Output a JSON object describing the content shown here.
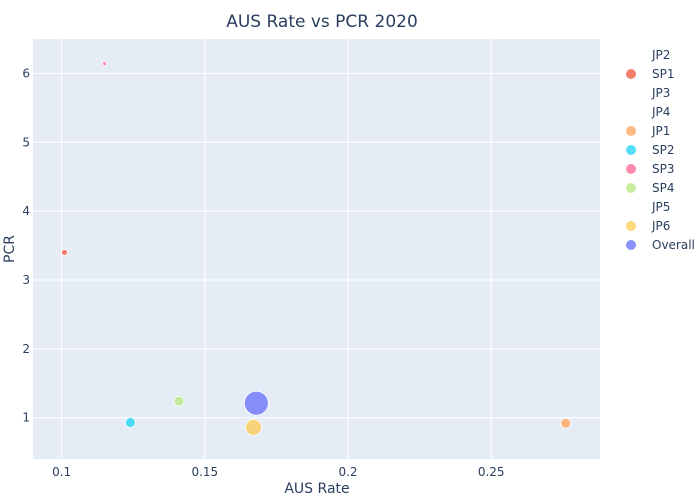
{
  "chart_data": {
    "type": "scatter",
    "title": "AUS Rate vs PCR 2020",
    "xlabel": "AUS Rate",
    "ylabel": "PCR",
    "xlim": [
      0.09,
      0.288
    ],
    "ylim": [
      0.4,
      6.5
    ],
    "xticks": [
      0.1,
      0.15,
      0.2,
      0.25
    ],
    "xtick_labels": [
      "0.1",
      "0.15",
      "0.2",
      "0.25"
    ],
    "yticks": [
      1,
      2,
      3,
      4,
      5,
      6
    ],
    "ytick_labels": [
      "1",
      "2",
      "3",
      "4",
      "5",
      "6"
    ],
    "grid": true,
    "legend_position": "right",
    "plot_background": "#e5ecf6",
    "series": [
      {
        "name": "JP2",
        "color": "#636efa",
        "points": []
      },
      {
        "name": "SP1",
        "color": "#ef553b",
        "points": [
          {
            "x": 0.101,
            "y": 3.4,
            "size": 3
          }
        ]
      },
      {
        "name": "JP3",
        "color": "#00cc96",
        "points": []
      },
      {
        "name": "JP4",
        "color": "#ab63fa",
        "points": []
      },
      {
        "name": "JP1",
        "color": "#ffa15a",
        "points": [
          {
            "x": 0.276,
            "y": 0.92,
            "size": 5
          }
        ]
      },
      {
        "name": "SP2",
        "color": "#19d3f3",
        "points": [
          {
            "x": 0.124,
            "y": 0.93,
            "size": 5
          }
        ]
      },
      {
        "name": "SP3",
        "color": "#ff6692",
        "points": [
          {
            "x": 0.115,
            "y": 6.14,
            "size": 2
          }
        ]
      },
      {
        "name": "SP4",
        "color": "#b6e880",
        "points": [
          {
            "x": 0.141,
            "y": 1.24,
            "size": 5
          }
        ]
      },
      {
        "name": "JP5",
        "color": "#ff97ff",
        "points": []
      },
      {
        "name": "JP6",
        "color": "#fecb52",
        "points": [
          {
            "x": 0.167,
            "y": 0.86,
            "size": 8
          }
        ]
      },
      {
        "name": "Overall",
        "color": "#636efa",
        "points": [
          {
            "x": 0.168,
            "y": 1.21,
            "size": 12
          }
        ]
      }
    ]
  }
}
